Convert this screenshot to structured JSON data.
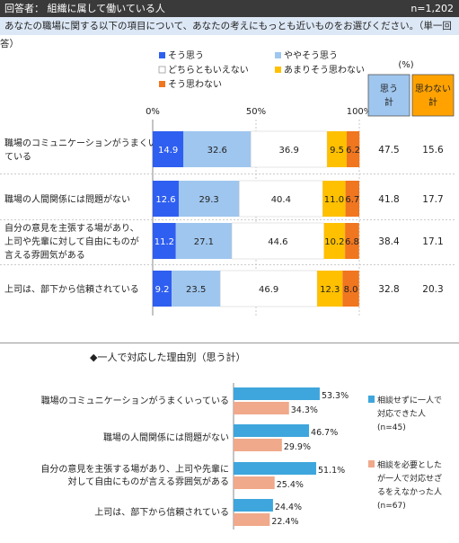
{
  "header": {
    "respondent": "回答者： 組織に属して働いている人",
    "n": "n=1,202"
  },
  "question": "あなたの職場に関する以下の項目について、あなたの考えにもっとも近いものをお選びください。（単一回答）",
  "unit": "(%)",
  "section2_title": "◆一人で対応した理由別（思う計）",
  "chart_data": [
    {
      "type": "bar",
      "orientation": "horizontal",
      "stacked": true,
      "categories": [
        [
          "職場のコミュニケーションがうまくいっ",
          "ている"
        ],
        [
          "職場の人間関係には問題がない"
        ],
        [
          "自分の意見を主張する場があり、",
          "上司や先輩に対して自由にものが",
          "言える雰囲気がある"
        ],
        [
          "上司は、部下から信頼されている"
        ]
      ],
      "series": [
        {
          "name": "そう思う",
          "color": "#2f5ff0",
          "values": [
            14.9,
            12.6,
            11.2,
            9.2
          ]
        },
        {
          "name": "ややそう思う",
          "color": "#9fc6ee",
          "values": [
            32.6,
            29.3,
            27.1,
            23.5
          ]
        },
        {
          "name": "どちらともいえない",
          "color": "#ffffff",
          "values": [
            36.9,
            40.4,
            44.6,
            46.9
          ]
        },
        {
          "name": "あまりそう思わない",
          "color": "#ffc000",
          "values": [
            9.5,
            11.0,
            10.2,
            12.3
          ]
        },
        {
          "name": "そう思わない",
          "color": "#f0761f",
          "values": [
            6.2,
            6.7,
            6.8,
            8.0
          ]
        }
      ],
      "xticks": [
        "0%",
        "50%",
        "100%"
      ],
      "xlim": [
        0,
        100
      ],
      "summary": {
        "headers": [
          [
            "思う",
            "計"
          ],
          [
            "思わない",
            "計"
          ]
        ],
        "header_colors": [
          "#9fc6ee",
          "#ffa200"
        ],
        "agree": [
          47.5,
          41.8,
          38.4,
          32.8
        ],
        "disagree": [
          15.6,
          17.7,
          17.1,
          20.3
        ]
      }
    },
    {
      "type": "bar",
      "orientation": "horizontal",
      "categories": [
        [
          "職場のコミュニケーションがうまくいっている"
        ],
        [
          "職場の人間関係には問題がない"
        ],
        [
          "自分の意見を主張する場があり、上司や先輩に",
          "対して自由にものが言える雰囲気がある"
        ],
        [
          "上司は、部下から信頼されている"
        ]
      ],
      "series": [
        {
          "name": [
            "相談せずに一人で",
            "対応できた人",
            "(n=45)"
          ],
          "color": "#3ea6dc",
          "values": [
            53.3,
            46.7,
            51.1,
            24.4
          ]
        },
        {
          "name": [
            "相談を必要とした",
            "が一人で対応せざ",
            "るをえなかった人",
            "(n=67)"
          ],
          "color": "#f0a98a",
          "values": [
            34.3,
            29.9,
            25.4,
            22.4
          ]
        }
      ]
    }
  ]
}
